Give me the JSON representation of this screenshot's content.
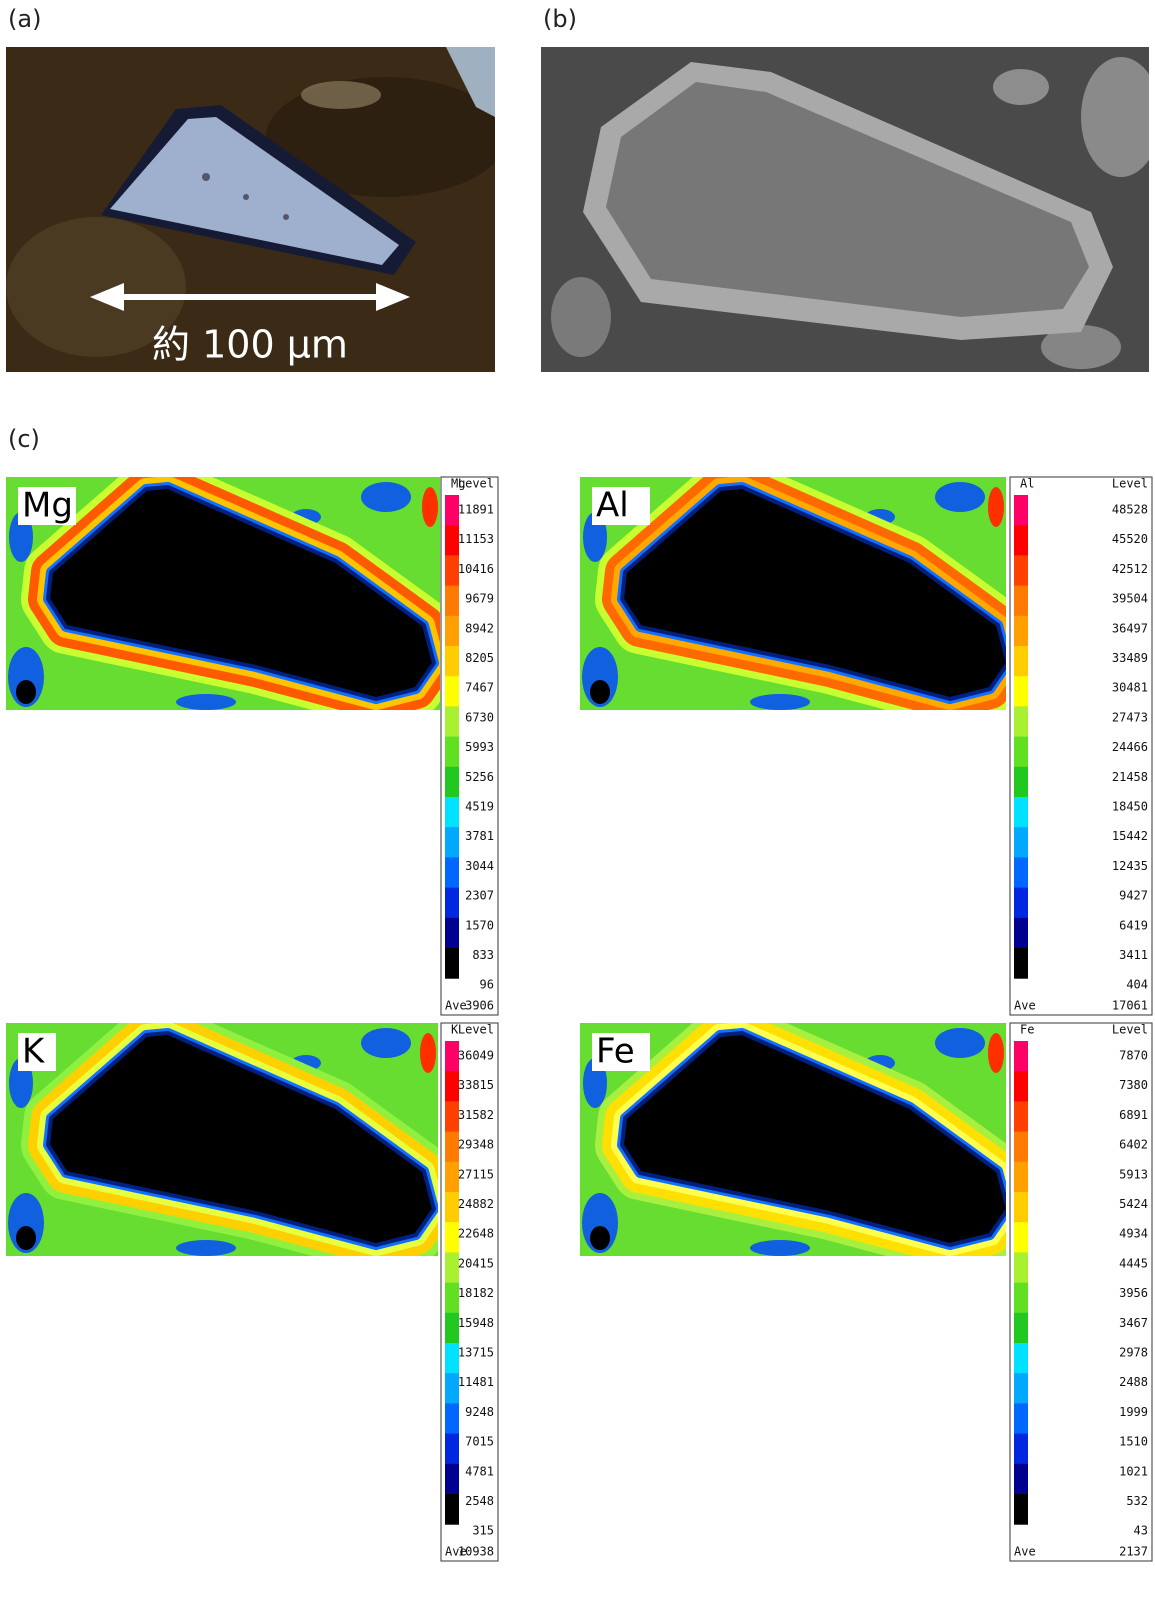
{
  "panels": [
    {
      "label": "(a)",
      "scale_label": "約 100 μm"
    },
    {
      "label": "(b)"
    },
    {
      "label": "(c)",
      "maps": [
        {
          "element": "Mg",
          "legend_element": "Mg",
          "legend_title": "Level",
          "levels": [
            11891,
            11153,
            10416,
            9679,
            8942,
            8205,
            7467,
            6730,
            5993,
            5256,
            4519,
            3781,
            3044,
            2307,
            1570,
            833,
            96
          ],
          "average_label": "Ave",
          "average": 3906
        },
        {
          "element": "Al",
          "legend_element": "Al",
          "legend_title": "Level",
          "levels": [
            48528,
            45520,
            42512,
            39504,
            36497,
            33489,
            30481,
            27473,
            24466,
            21458,
            18450,
            15442,
            12435,
            9427,
            6419,
            3411,
            404
          ],
          "average_label": "Ave",
          "average": 17061
        },
        {
          "element": "K",
          "legend_element": "K",
          "legend_title": "Level",
          "levels": [
            36049,
            33815,
            31582,
            29348,
            27115,
            24882,
            22648,
            20415,
            18182,
            15948,
            13715,
            11481,
            9248,
            7015,
            4781,
            2548,
            315
          ],
          "average_label": "Ave",
          "average": 10938
        },
        {
          "element": "Fe",
          "legend_element": "Fe",
          "legend_title": "Level",
          "levels": [
            7870,
            7380,
            6891,
            6402,
            5913,
            5424,
            4934,
            4445,
            3956,
            3467,
            2978,
            2488,
            1999,
            1510,
            1021,
            532,
            43
          ],
          "average_label": "Ave",
          "average": 2137
        }
      ]
    }
  ]
}
